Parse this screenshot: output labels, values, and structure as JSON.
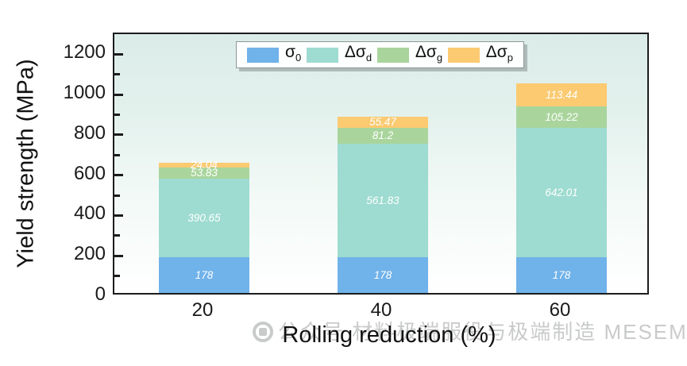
{
  "chart_data": {
    "type": "bar",
    "stacked": true,
    "title": "",
    "xlabel": "Rolling reduction (%)",
    "ylabel": "Yield strength (MPa)",
    "categories": [
      "20",
      "40",
      "60"
    ],
    "series": [
      {
        "name": "sigma_0",
        "label": {
          "base": "σ",
          "sub": "0"
        },
        "color": "#70b2ea",
        "values": [
          178,
          178,
          178
        ],
        "value_labels": [
          "178",
          "178",
          "178"
        ]
      },
      {
        "name": "delta_sigma_d",
        "label": {
          "base": "Δσ",
          "sub": "d"
        },
        "color": "#9edbd1",
        "values": [
          390.65,
          561.83,
          642.01
        ],
        "value_labels": [
          "390.65",
          "561.83",
          "642.01"
        ]
      },
      {
        "name": "delta_sigma_g",
        "label": {
          "base": "Δσ",
          "sub": "g"
        },
        "color": "#a9d59c",
        "values": [
          53.83,
          81.2,
          105.22
        ],
        "value_labels": [
          "53.83",
          "81.2",
          "105.22"
        ]
      },
      {
        "name": "delta_sigma_p",
        "label": {
          "base": "Δσ",
          "sub": "p"
        },
        "color": "#fbca71",
        "values": [
          24.04,
          55.47,
          113.44
        ],
        "value_labels": [
          "24.04",
          "55.47",
          "113.44"
        ]
      }
    ],
    "ylim": [
      0,
      1300
    ],
    "yticks": [
      0,
      200,
      400,
      600,
      800,
      1000,
      1200
    ],
    "minor_ytick_step": 100,
    "grid": false,
    "legend_position": "top-center",
    "bar_value_label_color": "#ffffff",
    "plot_background_top": "#dbece8",
    "plot_background_bottom": "#ffffff",
    "frame_color": "#1c1c1c"
  },
  "watermark": {
    "text": "公众号 材料极端服役与极端制造 MESEM",
    "color": "#c9cbca"
  }
}
